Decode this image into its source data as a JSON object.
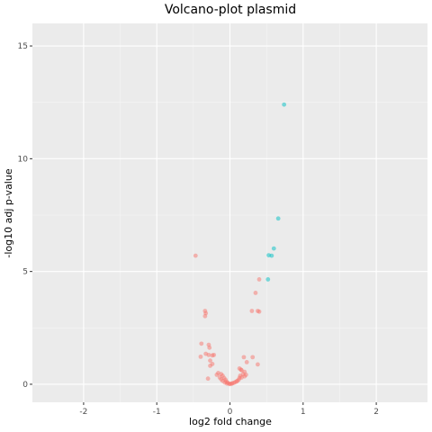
{
  "chart_data": {
    "type": "scatter",
    "title": "Volcano-plot plasmid",
    "xlabel": "log2 fold change",
    "ylabel": "-log10 adj p-value",
    "xlim": [
      -2.7,
      2.7
    ],
    "ylim": [
      -0.8,
      16.0
    ],
    "x_ticks": [
      -2,
      -1,
      0,
      1,
      2
    ],
    "y_ticks": [
      0,
      5,
      10,
      15
    ],
    "grid": true,
    "legend": "none",
    "colors": {
      "panel_background": "#EBEBEB",
      "major_grid": "#FFFFFF",
      "minor_grid": "#F5F5F5",
      "not_significant": "#F8766D",
      "significant": "#00BFC4"
    },
    "series": [
      {
        "group": "not_significant",
        "points": [
          [
            -0.47,
            5.7
          ],
          [
            -0.34,
            3.25
          ],
          [
            -0.33,
            3.15
          ],
          [
            -0.34,
            3.02
          ],
          [
            -0.39,
            1.8
          ],
          [
            -0.29,
            1.75
          ],
          [
            -0.28,
            1.62
          ],
          [
            -0.33,
            1.35
          ],
          [
            -0.29,
            1.3
          ],
          [
            -0.22,
            1.3
          ],
          [
            -0.24,
            1.28
          ],
          [
            -0.4,
            1.22
          ],
          [
            -0.27,
            1.05
          ],
          [
            -0.24,
            0.9
          ],
          [
            -0.27,
            0.82
          ],
          [
            -0.3,
            0.25
          ],
          [
            -0.16,
            0.5
          ],
          [
            -0.12,
            0.45
          ],
          [
            -0.18,
            0.42
          ],
          [
            -0.1,
            0.38
          ],
          [
            -0.14,
            0.3
          ],
          [
            -0.08,
            0.28
          ],
          [
            -0.12,
            0.22
          ],
          [
            -0.06,
            0.2
          ],
          [
            -0.1,
            0.15
          ],
          [
            -0.05,
            0.12
          ],
          [
            -0.07,
            0.08
          ],
          [
            -0.03,
            0.07
          ],
          [
            -0.04,
            0.03
          ],
          [
            -0.01,
            0.02
          ],
          [
            0.0,
            0.01
          ],
          [
            0.02,
            0.02
          ],
          [
            0.03,
            0.04
          ],
          [
            0.05,
            0.06
          ],
          [
            0.07,
            0.09
          ],
          [
            0.09,
            0.12
          ],
          [
            0.1,
            0.15
          ],
          [
            0.12,
            0.2
          ],
          [
            0.13,
            0.28
          ],
          [
            0.16,
            0.3
          ],
          [
            0.14,
            0.38
          ],
          [
            0.18,
            0.45
          ],
          [
            0.2,
            0.55
          ],
          [
            0.15,
            0.65
          ],
          [
            0.13,
            0.7
          ],
          [
            0.16,
            0.62
          ],
          [
            0.2,
            0.35
          ],
          [
            0.22,
            0.42
          ],
          [
            0.19,
            1.2
          ],
          [
            0.31,
            1.2
          ],
          [
            0.23,
            0.98
          ],
          [
            0.38,
            0.88
          ],
          [
            0.3,
            3.25
          ],
          [
            0.38,
            3.25
          ],
          [
            0.4,
            3.22
          ],
          [
            0.35,
            4.05
          ],
          [
            0.4,
            4.65
          ]
        ]
      },
      {
        "group": "significant",
        "points": [
          [
            0.74,
            12.4
          ],
          [
            0.66,
            7.35
          ],
          [
            0.6,
            6.02
          ],
          [
            0.53,
            5.72
          ],
          [
            0.57,
            5.7
          ],
          [
            0.52,
            4.65
          ]
        ]
      }
    ]
  }
}
